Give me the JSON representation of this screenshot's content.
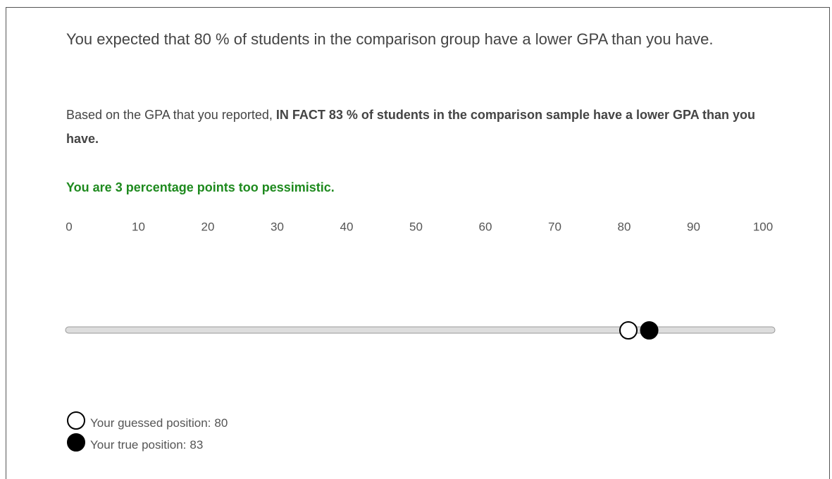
{
  "feedback": {
    "expectation": "You expected that 80 % of students in the comparison group have a lower GPA than you have.",
    "fact_intro": "Based on the GPA that you reported,",
    "fact_bold": "IN FACT 83 % of students in the comparison sample have a lower GPA than you have.",
    "verdict": "You are 3 percentage points too pessimistic."
  },
  "scale": {
    "ticks": [
      0,
      10,
      20,
      30,
      40,
      50,
      60,
      70,
      80,
      90,
      100
    ]
  },
  "markers": [
    {
      "label": "Your guessed position:",
      "value": 80,
      "style": "open"
    },
    {
      "label": "Your true position:",
      "value": 83,
      "style": "filled"
    }
  ]
}
